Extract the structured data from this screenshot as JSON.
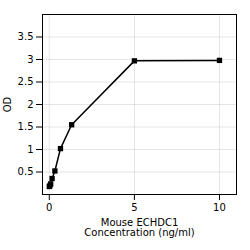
{
  "chart_data": {
    "type": "line",
    "x": [
      0,
      0.041,
      0.082,
      0.164,
      0.328,
      0.656,
      1.313,
      5,
      10
    ],
    "values": [
      0.178,
      0.199,
      0.235,
      0.355,
      0.523,
      1.02,
      1.55,
      2.97,
      2.98
    ],
    "xlabel": "Mouse ECHDC1\nConcentration (ng/ml)",
    "ylabel": "OD",
    "xlim": [
      -0.4,
      11
    ],
    "ylim": [
      0.0,
      4.0
    ],
    "xticks": [
      0,
      5,
      10
    ],
    "yticks": [
      0.5,
      1.0,
      1.5,
      2.0,
      2.5,
      3.0,
      3.5
    ],
    "marker": "square",
    "grid": true
  }
}
